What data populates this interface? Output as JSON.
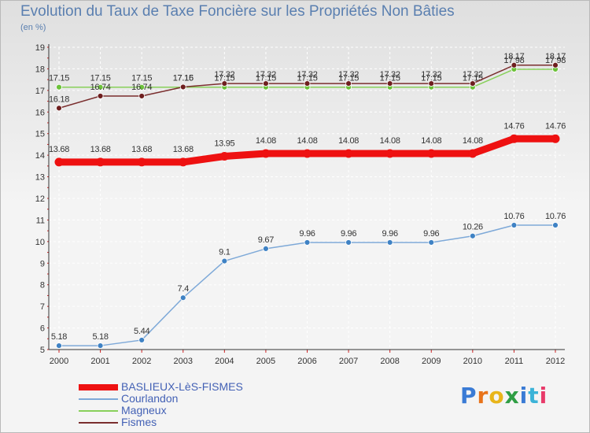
{
  "header": {
    "title": "Evolution du Taux de Taxe Foncière sur les Propriétés Non Bâties",
    "unit": "(en %)"
  },
  "logo": {
    "letters": [
      "P",
      "r",
      "o",
      "x",
      "i",
      "t",
      "i"
    ],
    "colors": [
      "#3a7bd5",
      "#e8731a",
      "#e8b51a",
      "#2f9e44",
      "#3a7bd5",
      "#3bb3d8",
      "#e83a6a"
    ]
  },
  "chart_data": {
    "type": "line",
    "title": "Evolution du Taux de Taxe Foncière sur les Propriétés Non Bâties",
    "ylabel": "(en %)",
    "xlabel": "",
    "ylim": [
      5,
      19
    ],
    "yticks": [
      "5",
      "6",
      "7",
      "8",
      "9",
      "10",
      "11",
      "12",
      "13",
      "14",
      "15",
      "16",
      "17",
      "18",
      "19"
    ],
    "x": [
      "2000",
      "2001",
      "2002",
      "2003",
      "2004",
      "2005",
      "2006",
      "2007",
      "2008",
      "2009",
      "2010",
      "2011",
      "2012"
    ],
    "grid": true,
    "legend_position": "bottom-left",
    "series": [
      {
        "name": "Magneux",
        "color": "#88d05a",
        "marker": "#6cc23a",
        "stroke_style": "thin",
        "values": [
          17.15,
          17.15,
          17.15,
          17.15,
          17.15,
          17.15,
          17.15,
          17.15,
          17.15,
          17.15,
          17.15,
          17.98,
          17.98
        ],
        "labels": [
          "17.15",
          "17.15",
          "17.15",
          "17.15",
          "17.15",
          "17.15",
          "17.15",
          "17.15",
          "17.15",
          "17.15",
          "17.15",
          "17.98",
          "17.98"
        ]
      },
      {
        "name": "Fismes",
        "color": "#7a2e2e",
        "marker": "#6e1f1f",
        "stroke_style": "thin",
        "values": [
          16.18,
          16.74,
          16.74,
          17.16,
          17.32,
          17.32,
          17.32,
          17.32,
          17.32,
          17.32,
          17.32,
          18.17,
          18.17
        ],
        "labels": [
          "16.18",
          "16.74",
          "16.74",
          "17.16",
          "17.32",
          "17.32",
          "17.32",
          "17.32",
          "17.32",
          "17.32",
          "17.32",
          "18.17",
          "18.17"
        ]
      },
      {
        "name": "Courlandon",
        "color": "#7ea9d8",
        "marker": "#3f82c4",
        "stroke_style": "thin",
        "values": [
          5.18,
          5.18,
          5.44,
          7.4,
          9.1,
          9.67,
          9.96,
          9.96,
          9.96,
          9.96,
          10.26,
          10.76,
          10.76
        ],
        "labels": [
          "5.18",
          "5.18",
          "5.44",
          "7.4",
          "9.1",
          "9.67",
          "9.96",
          "9.96",
          "9.96",
          "9.96",
          "10.26",
          "10.76",
          "10.76"
        ]
      },
      {
        "name": "BASLIEUX-LèS-FISMES",
        "color": "#ee1111",
        "marker": "#ee1111",
        "stroke_style": "thick",
        "values": [
          13.68,
          13.68,
          13.68,
          13.68,
          13.95,
          14.08,
          14.08,
          14.08,
          14.08,
          14.08,
          14.08,
          14.76,
          14.76
        ],
        "labels": [
          "13.68",
          "13.68",
          "13.68",
          "13.68",
          "13.95",
          "14.08",
          "14.08",
          "14.08",
          "14.08",
          "14.08",
          "14.08",
          "14.76",
          "14.76"
        ]
      }
    ],
    "legend": [
      "BASLIEUX-LèS-FISMES",
      "Courlandon",
      "Magneux",
      "Fismes"
    ]
  }
}
